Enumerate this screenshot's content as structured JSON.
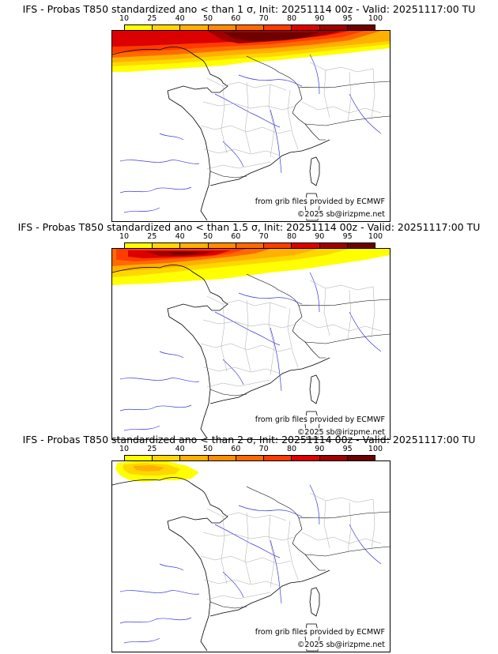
{
  "panels": [
    {
      "title": "IFS - Probas T850  standardized ano < than 1 σ, Init: 20251114 00z - Valid: 20251117:00 TU",
      "source_credit": "from grib files provided by ECMWF",
      "copyright": "©2025 sb@irizpme.net"
    },
    {
      "title": "IFS - Probas T850  standardized ano < than 1.5 σ, Init: 20251114 00z - Valid: 20251117:00 TU",
      "source_credit": "from grib files provided by ECMWF",
      "copyright": "©2025 sb@irizpme.net"
    },
    {
      "title": "IFS - Probas T850  standardized ano < than 2 σ, Init: 20251114 00z - Valid: 20251117:00 TU",
      "source_credit": "from grib files provided by ECMWF",
      "copyright": "©2025 sb@irizpme.net"
    }
  ],
  "colorbar": {
    "labels": [
      "10",
      "25",
      "40",
      "50",
      "60",
      "70",
      "80",
      "90",
      "95",
      "100"
    ],
    "colors": [
      "#ffff00",
      "#ffd700",
      "#ffb000",
      "#ff8c00",
      "#ff6a00",
      "#ff3c00",
      "#dc0000",
      "#a00000",
      "#6e0000"
    ]
  }
}
